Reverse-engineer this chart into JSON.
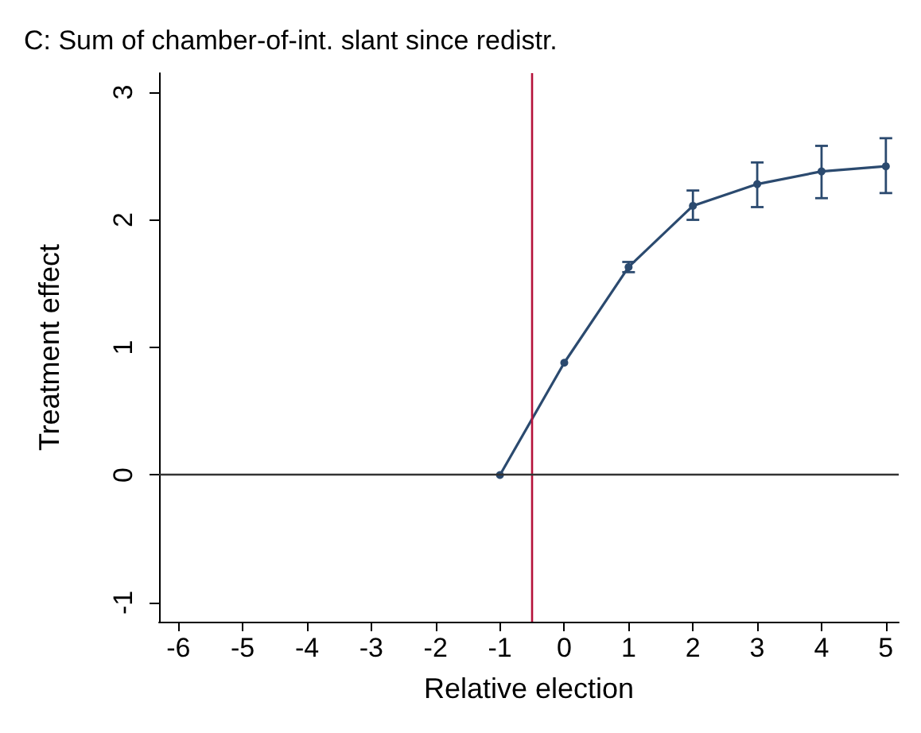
{
  "chart_data": {
    "type": "line",
    "title": "C: Sum of chamber-of-int. slant since redistr.",
    "xlabel": "Relative election",
    "ylabel": "Treatment effect",
    "x": [
      -1,
      0,
      1,
      2,
      3,
      4,
      5
    ],
    "series": [
      {
        "color": "#2b4a6f",
        "values": [
          0,
          0.88,
          1.63,
          2.11,
          2.28,
          2.38,
          2.42
        ],
        "errors": [
          null,
          null,
          [
            1.59,
            1.67
          ],
          [
            2.0,
            2.23
          ],
          [
            2.1,
            2.45
          ],
          [
            2.17,
            2.58
          ],
          [
            2.21,
            2.64
          ]
        ]
      }
    ],
    "xlim": [
      -6.3,
      5.2
    ],
    "xticks": [
      -6,
      -5,
      -4,
      -3,
      -2,
      -1,
      0,
      1,
      2,
      3,
      4,
      5
    ],
    "ylim": [
      -1.15,
      3.15
    ],
    "yticks": [
      -1,
      0,
      1,
      2,
      3
    ],
    "ref_lines": [
      {
        "axis": "x",
        "value": -0.5,
        "color": "#b5123a"
      },
      {
        "axis": "y",
        "value": 0,
        "color": "#333333"
      }
    ],
    "grid": false,
    "marker": "circle",
    "line_style": "solid"
  }
}
